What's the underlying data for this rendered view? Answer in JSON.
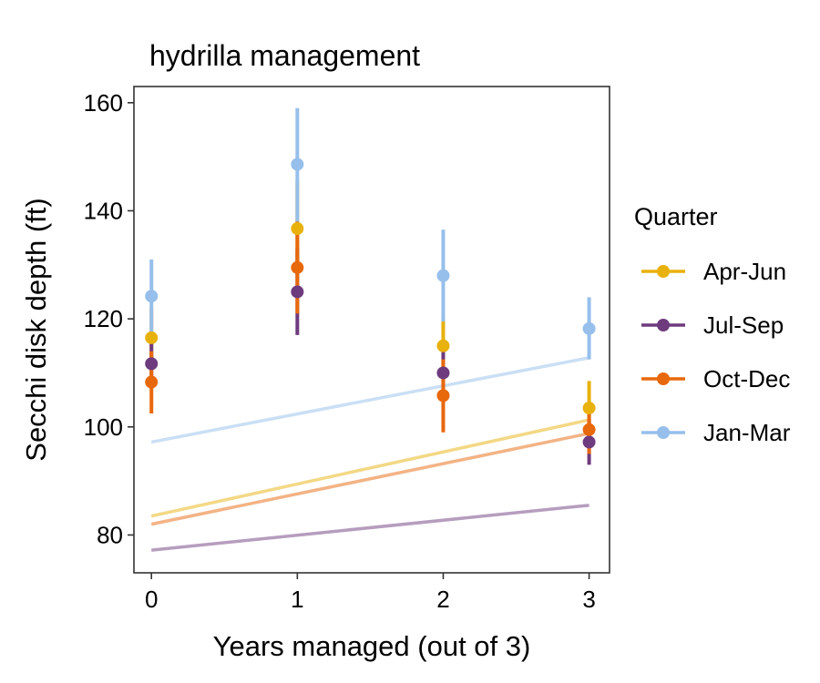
{
  "chart_data": {
    "type": "line",
    "title": "hydrilla management",
    "xlabel": "Years managed (out of 3)",
    "ylabel": "Secchi disk depth (ft)",
    "xlim": [
      -0.12,
      3.14
    ],
    "ylim": [
      73,
      163
    ],
    "x_ticks": [
      0,
      1,
      2,
      3
    ],
    "y_ticks": [
      80,
      100,
      120,
      140,
      160
    ],
    "grid": false,
    "legend": {
      "title": "Quarter",
      "position": "right"
    },
    "series": [
      {
        "name": "Apr-Jun",
        "color": "#E8B10C",
        "points": [
          {
            "x": 0,
            "y": 116.5,
            "ymin": 111.0,
            "ymax": 122.0
          },
          {
            "x": 1,
            "y": 136.7,
            "ymin": 128.0,
            "ymax": 145.5
          },
          {
            "x": 2,
            "y": 115.0,
            "ymin": 110.0,
            "ymax": 120.0
          },
          {
            "x": 3,
            "y": 103.5,
            "ymin": 98.5,
            "ymax": 108.5
          }
        ],
        "fit": [
          {
            "x": 0,
            "y": 83.5
          },
          {
            "x": 3,
            "y": 101.3
          }
        ]
      },
      {
        "name": "Jul-Sep",
        "color": "#6E3B7E",
        "points": [
          {
            "x": 0,
            "y": 111.7,
            "ymin": 107.0,
            "ymax": 116.5
          },
          {
            "x": 1,
            "y": 125.0,
            "ymin": 117.0,
            "ymax": 133.0
          },
          {
            "x": 2,
            "y": 110.0,
            "ymin": 104.5,
            "ymax": 115.5
          },
          {
            "x": 3,
            "y": 97.2,
            "ymin": 93.0,
            "ymax": 101.5
          }
        ],
        "fit": [
          {
            "x": 0,
            "y": 77.2
          },
          {
            "x": 3,
            "y": 85.5
          }
        ]
      },
      {
        "name": "Oct-Dec",
        "color": "#E8680C",
        "points": [
          {
            "x": 0,
            "y": 108.3,
            "ymin": 102.5,
            "ymax": 114.0
          },
          {
            "x": 1,
            "y": 129.5,
            "ymin": 121.0,
            "ymax": 138.0
          },
          {
            "x": 2,
            "y": 105.8,
            "ymin": 99.0,
            "ymax": 112.5
          },
          {
            "x": 3,
            "y": 99.5,
            "ymin": 95.0,
            "ymax": 104.0
          }
        ],
        "fit": [
          {
            "x": 0,
            "y": 82.0
          },
          {
            "x": 3,
            "y": 98.8
          }
        ]
      },
      {
        "name": "Jan-Mar",
        "color": "#96BFEB",
        "points": [
          {
            "x": 0,
            "y": 124.2,
            "ymin": 117.5,
            "ymax": 131.0
          },
          {
            "x": 1,
            "y": 148.6,
            "ymin": 138.0,
            "ymax": 159.0
          },
          {
            "x": 2,
            "y": 128.0,
            "ymin": 119.5,
            "ymax": 136.5
          },
          {
            "x": 3,
            "y": 118.2,
            "ymin": 112.5,
            "ymax": 124.0
          }
        ],
        "fit": [
          {
            "x": 0,
            "y": 97.2
          },
          {
            "x": 3,
            "y": 112.8
          }
        ]
      }
    ]
  }
}
